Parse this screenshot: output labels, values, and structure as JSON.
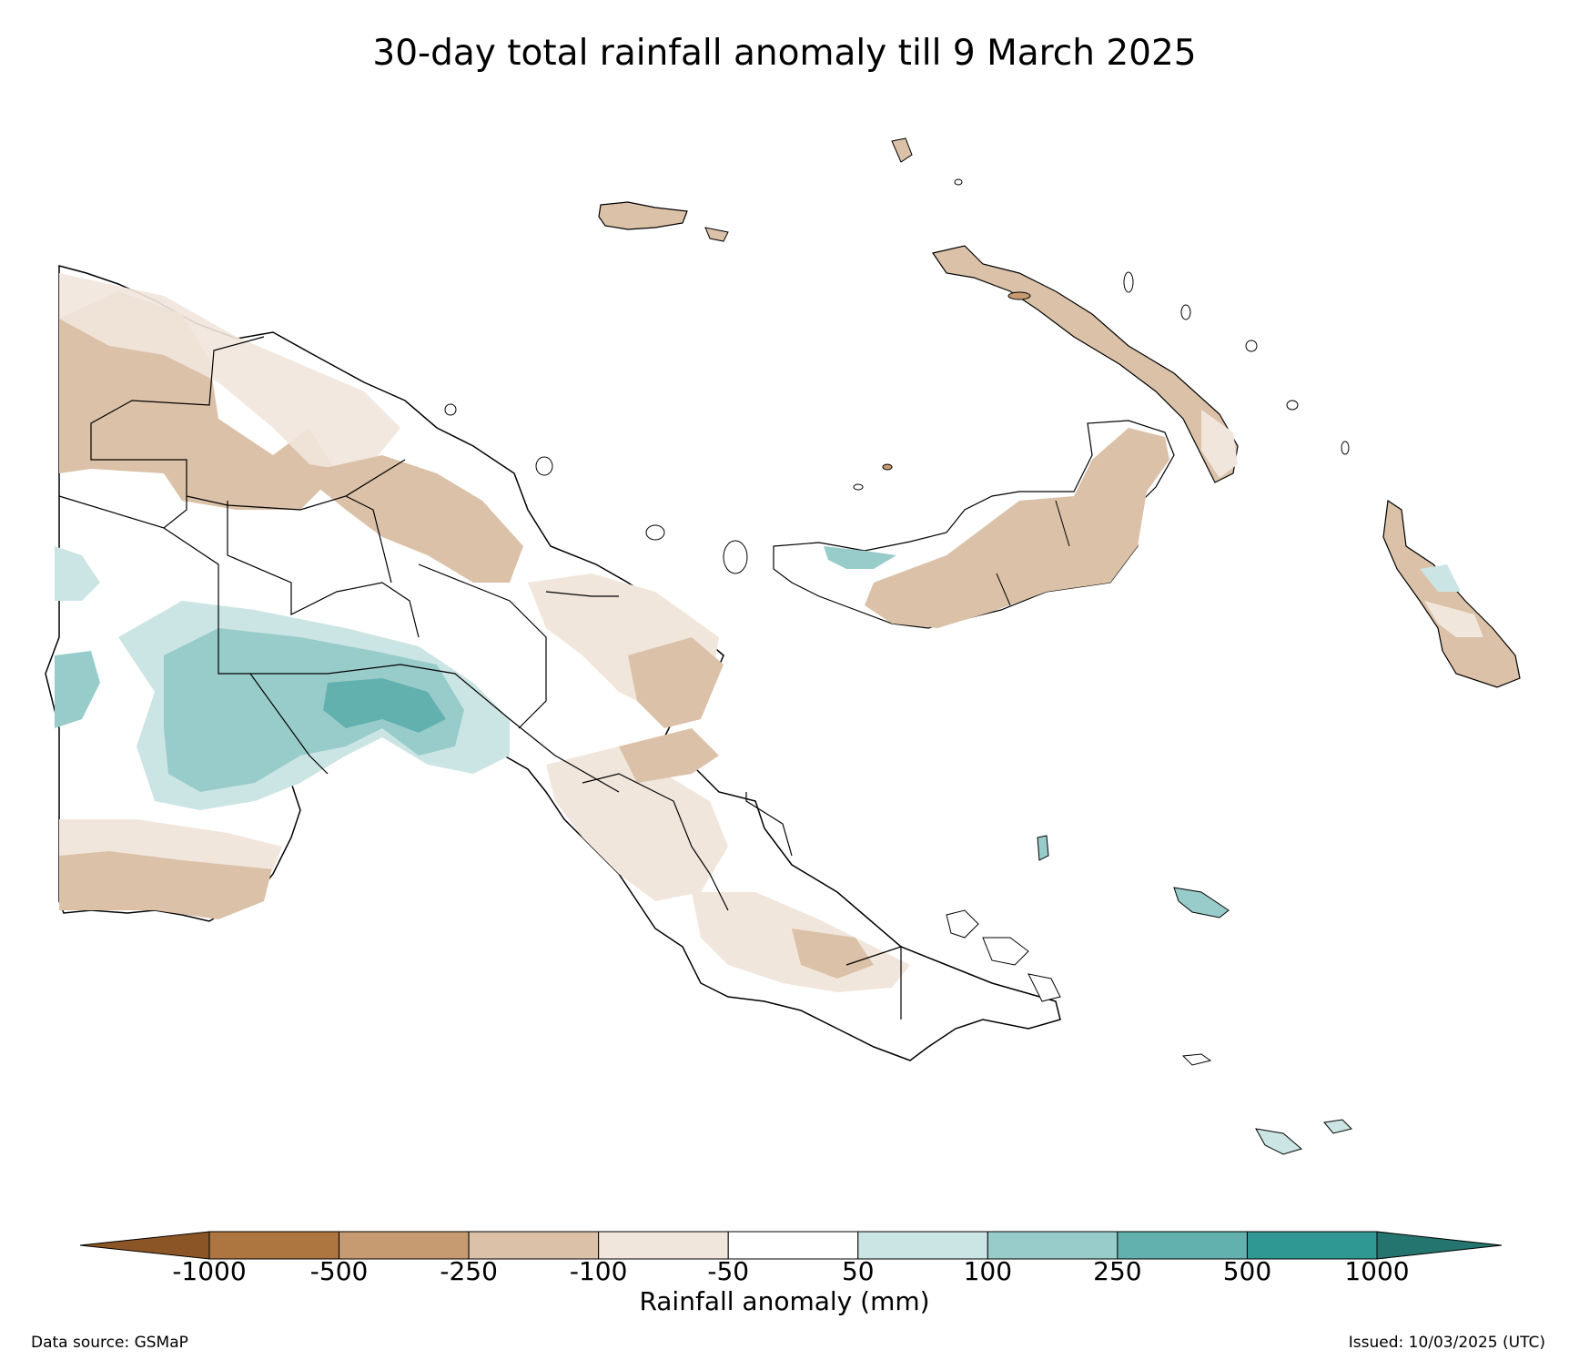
{
  "title": "30-day total rainfall anomaly till 9 March 2025",
  "map": {
    "region": "Papua New Guinea",
    "colors": {
      "land_base": "#ffffff",
      "dry_250_500": "#c69b72",
      "dry_100_250": "#dbc1a8",
      "dry_50_100": "#f1e6dc",
      "wet_50_100": "#cbe5e4",
      "wet_100_250": "#98cccb",
      "wet_250_500": "#63b1af",
      "outline": "#000000"
    }
  },
  "colorbar": {
    "title": "Rainfall anomaly (mm)",
    "ticks": [
      "-1000",
      "-500",
      "-250",
      "-100",
      "-50",
      "50",
      "100",
      "250",
      "500",
      "1000"
    ],
    "colors": [
      "#8c5525",
      "#ad7540",
      "#c69b72",
      "#dbc1a8",
      "#f1e6dc",
      "#ffffff",
      "#cbe5e4",
      "#98cccb",
      "#63b1af",
      "#2f9893",
      "#247470"
    ],
    "extend": "both"
  },
  "footer": {
    "source": "Data source: GSMaP",
    "issued": "Issued: 10/03/2025 (UTC)"
  }
}
